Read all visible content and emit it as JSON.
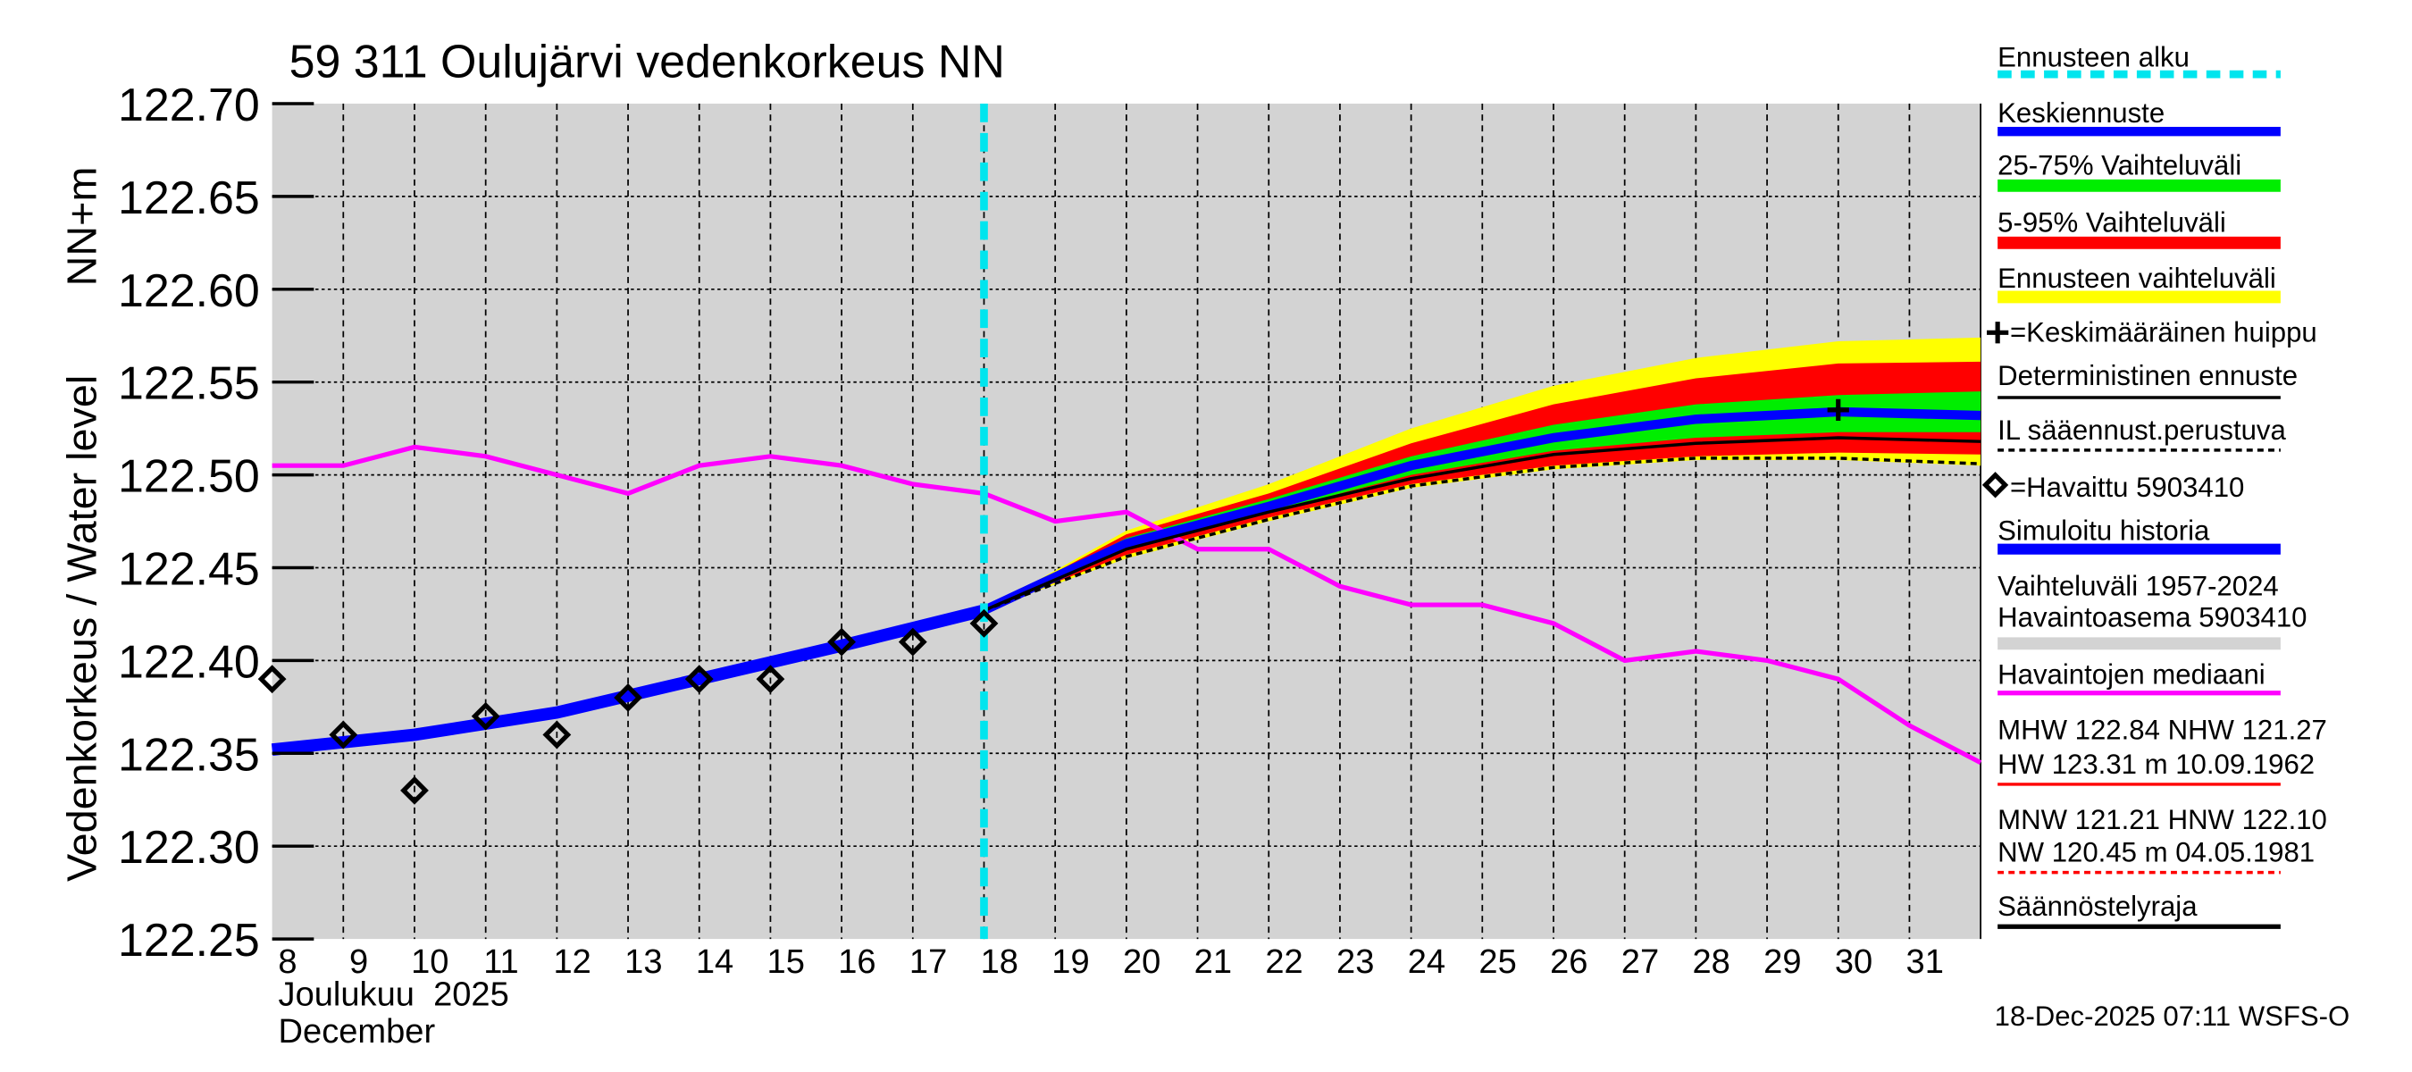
{
  "chart_data": {
    "type": "line",
    "title": "59 311 Oulujärvi vedenkorkeus NN",
    "ylabel": "Vedenkorkeus / Water level",
    "ylabel_unit": "NN+m",
    "xlabel_fi": "Joulukuu  2025",
    "xlabel_en": "December",
    "ylim": [
      122.25,
      122.7
    ],
    "xlim_days": [
      8,
      32
    ],
    "y_ticks": [
      "122.25",
      "122.30",
      "122.35",
      "122.40",
      "122.45",
      "122.50",
      "122.55",
      "122.60",
      "122.65",
      "122.70"
    ],
    "x_ticks": [
      "8",
      "9",
      "10",
      "11",
      "12",
      "13",
      "14",
      "15",
      "16",
      "17",
      "18",
      "19",
      "20",
      "21",
      "22",
      "23",
      "24",
      "25",
      "26",
      "27",
      "28",
      "29",
      "30",
      "31"
    ],
    "forecast_start_day": 18,
    "series": {
      "observed": {
        "x": [
          8,
          9,
          10,
          11,
          12,
          13,
          14,
          15,
          16,
          17,
          18
        ],
        "y": [
          122.39,
          122.36,
          122.33,
          122.37,
          122.36,
          122.38,
          122.39,
          122.39,
          122.41,
          122.41,
          122.42
        ]
      },
      "simulated_history": {
        "x": [
          8,
          10,
          12,
          14,
          16,
          18
        ],
        "y": [
          122.352,
          122.36,
          122.372,
          122.39,
          122.408,
          122.427
        ]
      },
      "median": {
        "x": [
          8,
          9,
          10,
          11,
          12,
          13,
          14,
          15,
          16,
          17,
          18,
          19,
          20,
          21,
          22,
          23,
          24,
          25,
          26,
          27,
          28,
          29,
          30,
          31,
          32
        ],
        "y": [
          122.505,
          122.505,
          122.515,
          122.51,
          122.5,
          122.49,
          122.505,
          122.51,
          122.505,
          122.495,
          122.49,
          122.475,
          122.48,
          122.46,
          122.46,
          122.44,
          122.43,
          122.43,
          122.42,
          122.4,
          122.405,
          122.4,
          122.39,
          122.365,
          122.345
        ]
      },
      "forecast_x": [
        18,
        20,
        22,
        24,
        26,
        28,
        30,
        32
      ],
      "range_upper": [
        122.427,
        122.47,
        122.495,
        122.525,
        122.548,
        122.563,
        122.572,
        122.574
      ],
      "range_lower": [
        122.427,
        122.455,
        122.475,
        122.493,
        122.503,
        122.508,
        122.508,
        122.505
      ],
      "p5_95_upper": [
        122.427,
        122.468,
        122.49,
        122.517,
        122.538,
        122.552,
        122.56,
        122.561
      ],
      "p5_95_lower": [
        122.427,
        122.457,
        122.477,
        122.495,
        122.505,
        122.51,
        122.512,
        122.511
      ],
      "p25_75_upper": [
        122.427,
        122.466,
        122.487,
        122.51,
        122.527,
        122.538,
        122.543,
        122.545
      ],
      "p25_75_lower": [
        122.427,
        122.46,
        122.48,
        122.5,
        122.513,
        122.52,
        122.523,
        122.523
      ],
      "mean_forecast": [
        122.427,
        122.463,
        122.483,
        122.505,
        122.52,
        122.53,
        122.534,
        122.532
      ],
      "deterministic": [
        122.427,
        122.46,
        122.48,
        122.498,
        122.511,
        122.517,
        122.52,
        122.518
      ],
      "il_forecast": [
        122.427,
        122.456,
        122.476,
        122.494,
        122.504,
        122.509,
        122.509,
        122.506
      ],
      "mean_peak": {
        "x": 30,
        "y": 122.535
      }
    },
    "colors": {
      "cyan": "#00e5ee",
      "blue": "#0000ff",
      "green": "#00ee00",
      "red": "#ff0000",
      "yellow": "#ffff00",
      "magenta": "#ff00ff",
      "gray": "#d3d3d3"
    }
  },
  "legend": {
    "forecast_start": "Ennusteen alku",
    "mean": "Keskiennuste",
    "p25_75": "25-75% Vaihteluväli",
    "p5_95": "5-95% Vaihteluväli",
    "range": "Ennusteen vaihteluväli",
    "peak": "=Keskimääräinen huippu",
    "deterministic": "Deterministinen ennuste",
    "il": "IL sääennust.perustuva",
    "observed": "=Havaittu 5903410",
    "simulated": "Simuloitu historia",
    "variation1": "Vaihteluväli 1957-2024",
    "variation2": "Havaintoasema 5903410",
    "median": "Havaintojen mediaani",
    "mhw1": "MHW 122.84 NHW 121.27",
    "mhw2": "HW 123.31 m 10.09.1962",
    "mnw1": "MNW 121.21 HNW 122.10",
    "mnw2": "NW 120.45 m 04.05.1981",
    "regulation": "Säännöstelyraja"
  },
  "footer": "18-Dec-2025 07:11 WSFS-O"
}
